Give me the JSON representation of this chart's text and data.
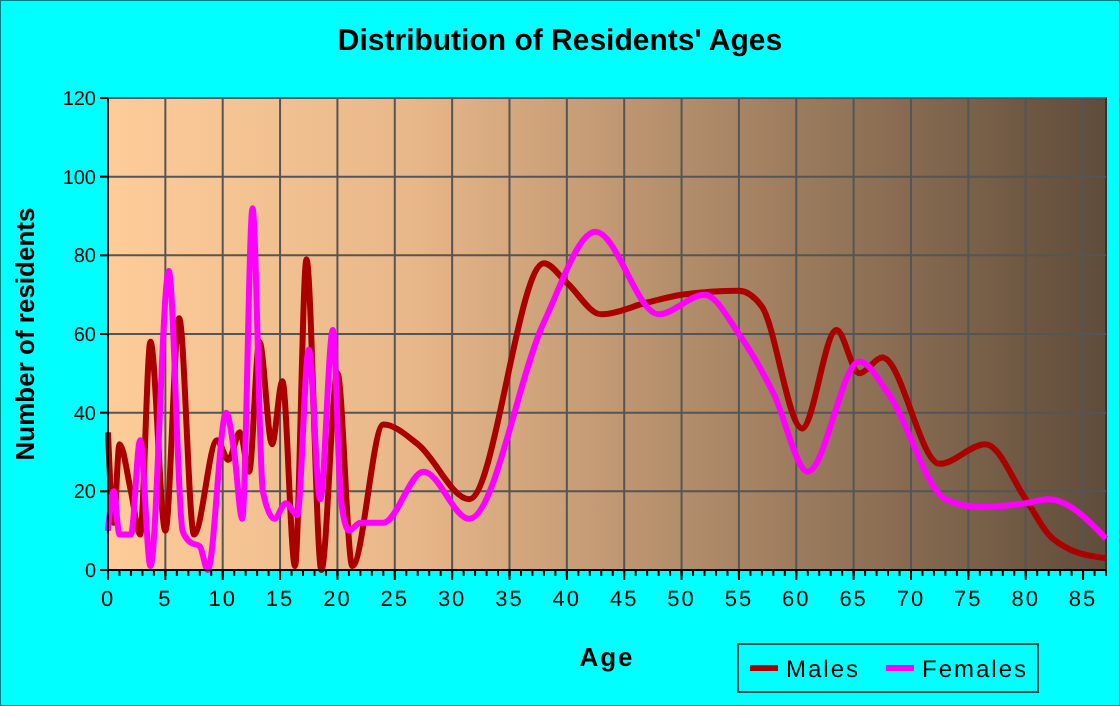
{
  "chart_data": {
    "type": "line",
    "title": "Distribution of Residents' Ages",
    "xlabel": "Age",
    "ylabel": "Number of residents",
    "xlim": [
      0,
      87
    ],
    "ylim": [
      0,
      120
    ],
    "xticks": [
      0,
      5,
      10,
      15,
      20,
      25,
      30,
      35,
      40,
      45,
      50,
      55,
      60,
      65,
      70,
      75,
      80,
      85
    ],
    "yticks": [
      0,
      20,
      40,
      60,
      80,
      100,
      120
    ],
    "grid": true,
    "legend": "bottom right",
    "line_style": "solid",
    "series": [
      {
        "name": "Males",
        "color": "#aa0000",
        "x": [
          0,
          0.5,
          1,
          2,
          2.8,
          3.7,
          5,
          6.2,
          7.5,
          9.5,
          10.5,
          11.5,
          12.3,
          13.2,
          14.3,
          15.2,
          16.3,
          17.3,
          18.6,
          20,
          21.3,
          24,
          27,
          31.5,
          38,
          40,
          43,
          47,
          50,
          55,
          57,
          60.5,
          63.5,
          65.5,
          67.5,
          72.5,
          76.5,
          80,
          82,
          84,
          87
        ],
        "values": [
          35,
          12,
          32,
          20,
          9,
          58,
          10,
          64,
          9,
          33,
          28,
          35,
          25,
          58,
          32,
          48,
          1,
          79,
          0,
          50,
          1,
          37,
          32,
          18,
          78,
          73,
          65,
          68,
          70,
          71,
          67,
          36,
          61,
          50,
          54,
          27,
          32,
          18,
          9,
          5,
          3
        ]
      },
      {
        "name": "Females",
        "color": "#ff00ff",
        "x": [
          0,
          0.5,
          1,
          2,
          2.8,
          3.7,
          5.3,
          6.5,
          7.2,
          8,
          8.7,
          10.3,
          11,
          11.7,
          12.6,
          13.5,
          14.5,
          15.5,
          16.5,
          17.5,
          18.5,
          19.6,
          20.3,
          21,
          22,
          24,
          27.5,
          31.5,
          38,
          42.5,
          48,
          52,
          55,
          58,
          61,
          65.5,
          68,
          73,
          76,
          80,
          82,
          87
        ],
        "values": [
          10,
          20,
          9,
          9,
          33,
          1,
          76,
          10,
          7,
          6,
          0,
          40,
          30,
          13,
          92,
          20,
          13,
          17,
          14,
          56,
          18,
          61,
          18,
          10,
          12,
          12,
          25,
          13,
          63,
          86,
          65,
          70,
          60,
          45,
          25,
          53,
          45,
          18,
          16,
          17,
          18,
          8
        ]
      }
    ]
  }
}
